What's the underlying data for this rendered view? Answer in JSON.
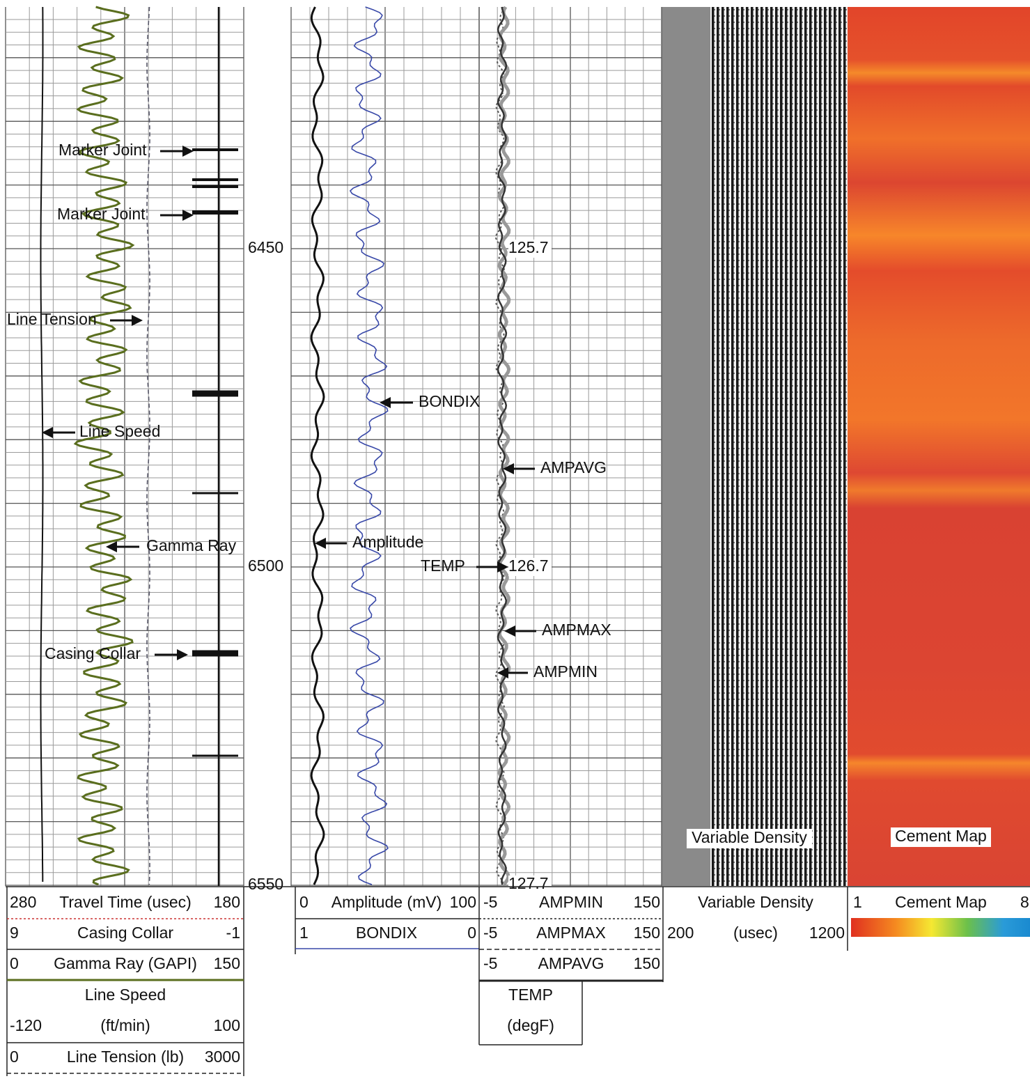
{
  "depth_labels": [
    6450,
    6500,
    6550
  ],
  "annotations": [
    "Marker Joint",
    "Marker Joint",
    "Line Tension",
    "Line Speed",
    "Gamma Ray",
    "Casing Collar",
    "BONDIX",
    "AMPAVG",
    "Amplitude",
    "TEMP",
    "AMPMAX",
    "AMPMIN"
  ],
  "temperature_labels": [
    "125.7",
    "126.7",
    "127.7"
  ],
  "image_labels": [
    "Variable Density",
    "Cement Map"
  ],
  "header": {
    "travel_time": [
      280,
      "Travel Time (usec)",
      180
    ],
    "casing_collar": [
      9,
      "Casing Collar",
      -1
    ],
    "gamma_ray": [
      0,
      "Gamma Ray (GAPI)",
      150
    ],
    "line_speed": [
      "Line Speed",
      -120,
      "(ft/min)",
      100
    ],
    "line_tension": [
      0,
      "Line Tension (lb)",
      3000
    ],
    "amplitude": [
      0,
      "Amplitude (mV)",
      100
    ],
    "bondix": [
      1,
      "BONDIX",
      0
    ],
    "ampmin": [
      -5,
      "AMPMIN",
      150
    ],
    "ampmax": [
      -5,
      "AMPMAX",
      150
    ],
    "ampavg": [
      -5,
      "AMPAVG",
      150
    ],
    "temp": [
      "TEMP",
      "(degF)"
    ],
    "variable_density": [
      "Variable Density",
      200,
      "(usec)",
      1200
    ],
    "cement_map": [
      1,
      "Cement Map",
      8
    ]
  }
}
